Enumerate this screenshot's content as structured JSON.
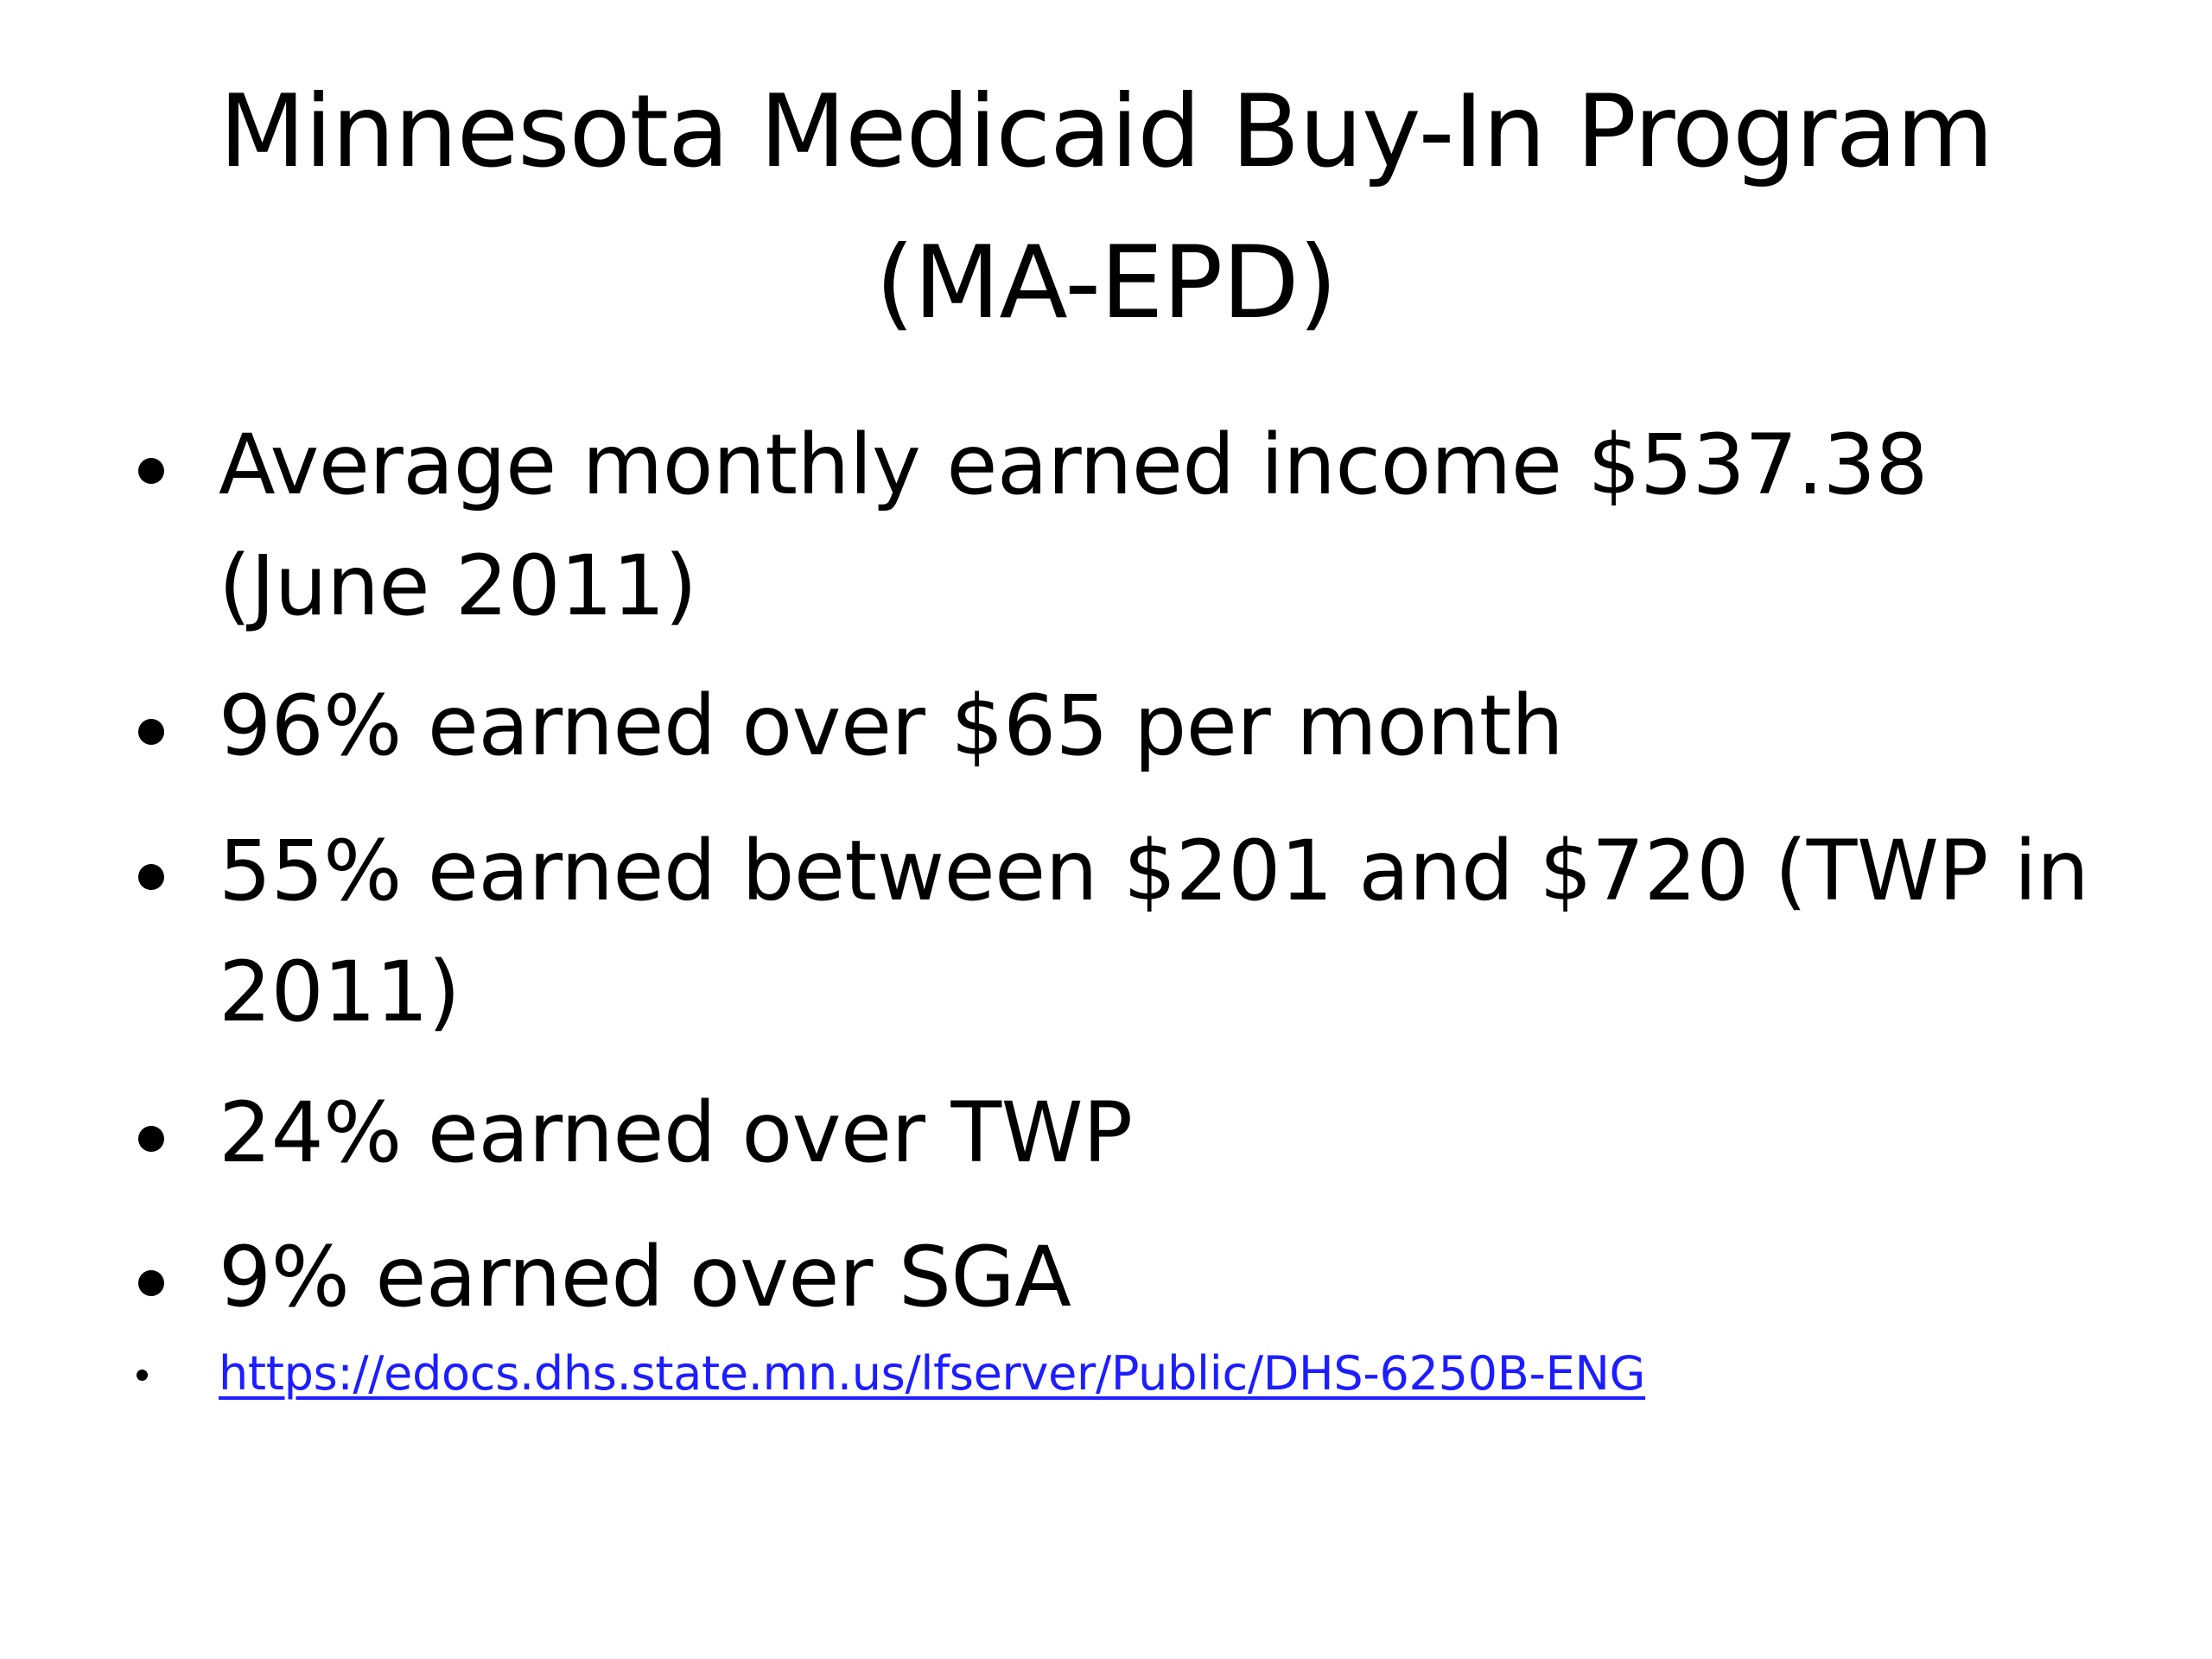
{
  "slide": {
    "title_line1": "Minnesota Medicaid Buy-In Program",
    "title_line2": "(MA-EPD)",
    "bullets": [
      {
        "line1": "Average monthly earned income $537.38",
        "line2": "(June 2011)"
      },
      {
        "line1": "96% earned over $65 per month"
      },
      {
        "line1": "55% earned between $201 and $720 (TWP in",
        "line2": "2011)"
      },
      {
        "line1": "24% earned over TWP"
      },
      {
        "line1": "9% earned over SGA"
      }
    ],
    "link": "https://edocs.dhs.state.mn.us/lfserver/Public/DHS-6250B-ENG"
  }
}
